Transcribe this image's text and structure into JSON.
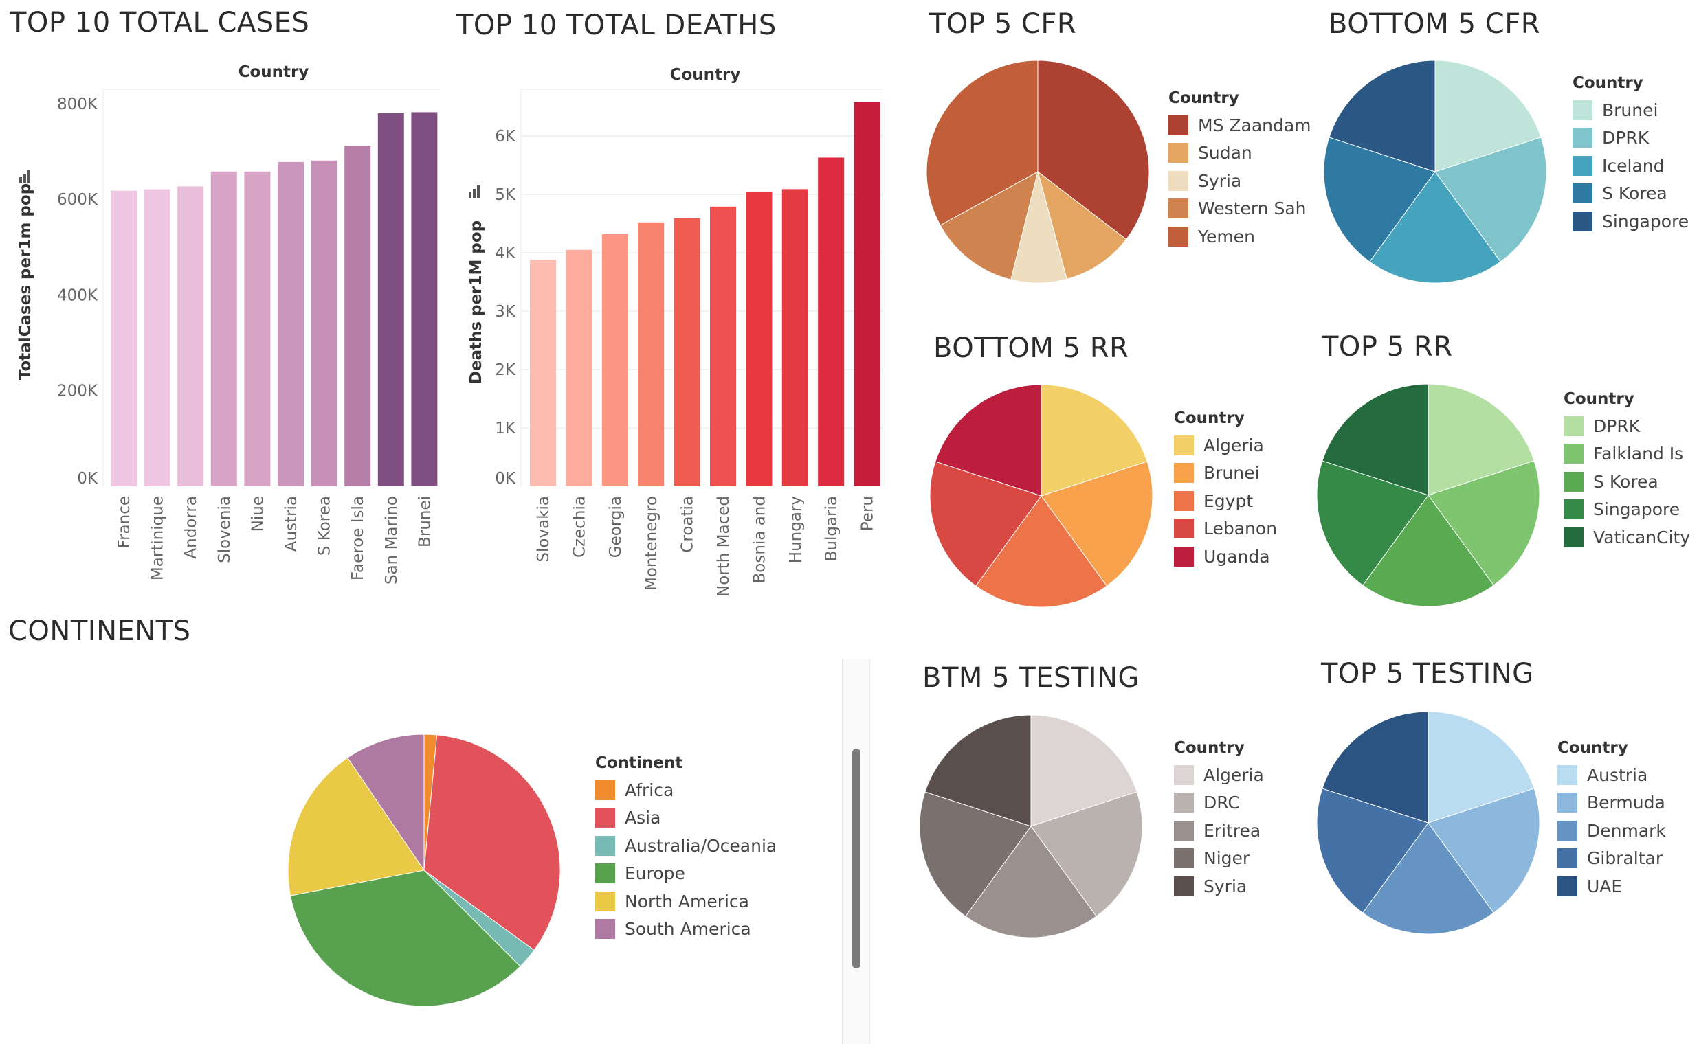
{
  "titles": {
    "cases": "TOP 10 TOTAL CASES",
    "deaths": "TOP 10 TOTAL DEATHS",
    "top_cfr": "TOP 5 CFR",
    "bottom_cfr": "BOTTOM 5 CFR",
    "bottom_rr": "BOTTOM 5 RR",
    "top_rr": "TOP 5 RR",
    "continents": "CONTINENTS",
    "btm_testing": "BTM 5 TESTING",
    "top_testing": "TOP 5 TESTING"
  },
  "chart_data": [
    {
      "id": "cases",
      "type": "bar",
      "xlabel": "Country",
      "ylabel": "TotalCases per1m pop",
      "ylim": [
        0,
        830000
      ],
      "yticks": [
        0,
        200000,
        400000,
        600000,
        800000
      ],
      "ytick_labels": [
        "0K",
        "200K",
        "400K",
        "600K",
        "800K"
      ],
      "categories": [
        "France",
        "Martinique",
        "Andorra",
        "Slovenia",
        "Niue",
        "Austria",
        "S Korea",
        "Faeroe Isla",
        "San Marino",
        "Brunei"
      ],
      "values": [
        618000,
        621000,
        627000,
        658000,
        658000,
        678000,
        681000,
        712000,
        780000,
        782000
      ],
      "colors": [
        "#efc6e2",
        "#efc6e2",
        "#e9bedb",
        "#d7a4c6",
        "#d7a4c6",
        "#cc97bc",
        "#c892b8",
        "#b47ea6",
        "#7e4f80",
        "#7e4f80"
      ],
      "grid": false
    },
    {
      "id": "deaths",
      "type": "bar",
      "xlabel": "Country",
      "ylabel": "Deaths per1M pop",
      "ylim": [
        0,
        6800
      ],
      "yticks": [
        0,
        1000,
        2000,
        3000,
        4000,
        5000,
        6000
      ],
      "ytick_labels": [
        "0K",
        "1K",
        "2K",
        "3K",
        "4K",
        "5K",
        "6K"
      ],
      "categories": [
        "Slovakia",
        "Czechia",
        "Georgia",
        "Montenegro",
        "Croatia",
        "North Maced",
        "Bosnia and",
        "Hungary",
        "Bulgaria",
        "Peru"
      ],
      "values": [
        3880,
        4050,
        4320,
        4520,
        4590,
        4790,
        5040,
        5090,
        5630,
        6580
      ],
      "colors": [
        "#fdbcb0",
        "#fcab9c",
        "#fb9783",
        "#f8836e",
        "#f15c52",
        "#ee5150",
        "#e8393f",
        "#e43a41",
        "#dd2a3e",
        "#c71b3a"
      ],
      "grid": true
    },
    {
      "id": "top_cfr",
      "type": "pie",
      "legend_title": "Country",
      "labels": [
        "MS Zaandam",
        "Sudan",
        "Syria",
        "Western Sah",
        "Yemen"
      ],
      "values": [
        35.4,
        10.4,
        8.1,
        13.1,
        33.0
      ],
      "colors": [
        "#ad4232",
        "#e4a462",
        "#efddc0",
        "#cf844f",
        "#c05f39"
      ]
    },
    {
      "id": "bottom_cfr",
      "type": "pie",
      "legend_title": "Country",
      "labels": [
        "Brunei",
        "DPRK",
        "Iceland",
        "S Korea",
        "Singapore"
      ],
      "values": [
        20,
        20,
        20,
        20,
        20
      ],
      "colors": [
        "#bfe4d9",
        "#7fc4cb",
        "#45a3bd",
        "#2f7aa2",
        "#2c5886"
      ]
    },
    {
      "id": "bottom_rr",
      "type": "pie",
      "legend_title": "Country",
      "labels": [
        "Algeria",
        "Brunei",
        "Egypt",
        "Lebanon",
        "Uganda"
      ],
      "values": [
        20,
        20,
        20,
        20,
        20
      ],
      "colors": [
        "#f3cf67",
        "#f9a24e",
        "#ed7348",
        "#d94944",
        "#bd1e3e"
      ]
    },
    {
      "id": "top_rr",
      "type": "pie",
      "legend_title": "Country",
      "labels": [
        "DPRK",
        "Falkland Is",
        "S Korea",
        "Singapore",
        "VaticanCity"
      ],
      "values": [
        20,
        20,
        20,
        20,
        20
      ],
      "colors": [
        "#b3e0a2",
        "#7fc56f",
        "#5aaa52",
        "#348a46",
        "#246b3e"
      ]
    },
    {
      "id": "continents",
      "type": "pie",
      "legend_title": "Continent",
      "labels": [
        "Africa",
        "Asia",
        "Australia/Oceania",
        "Europe",
        "North America",
        "South America"
      ],
      "values": [
        1.5,
        33.5,
        2.5,
        34.5,
        18.5,
        9.5
      ],
      "colors": [
        "#f08b2e",
        "#e1525a",
        "#77bab4",
        "#58a24f",
        "#eac946",
        "#af7aa1"
      ]
    },
    {
      "id": "btm_testing",
      "type": "pie",
      "legend_title": "Country",
      "labels": [
        "Algeria",
        "DRC",
        "Eritrea",
        "Niger",
        "Syria"
      ],
      "values": [
        20,
        20,
        20,
        20,
        20
      ],
      "colors": [
        "#ddd5d3",
        "#bab2af",
        "#9a908e",
        "#7a706e",
        "#5a4f4d"
      ]
    },
    {
      "id": "top_testing",
      "type": "pie",
      "legend_title": "Country",
      "labels": [
        "Austria",
        "Bermuda",
        "Denmark",
        "Gibraltar",
        "UAE"
      ],
      "values": [
        20,
        20,
        20,
        20,
        20
      ],
      "colors": [
        "#badcf1",
        "#8cb8dd",
        "#6695c4",
        "#4472a6",
        "#2b5483"
      ]
    }
  ]
}
